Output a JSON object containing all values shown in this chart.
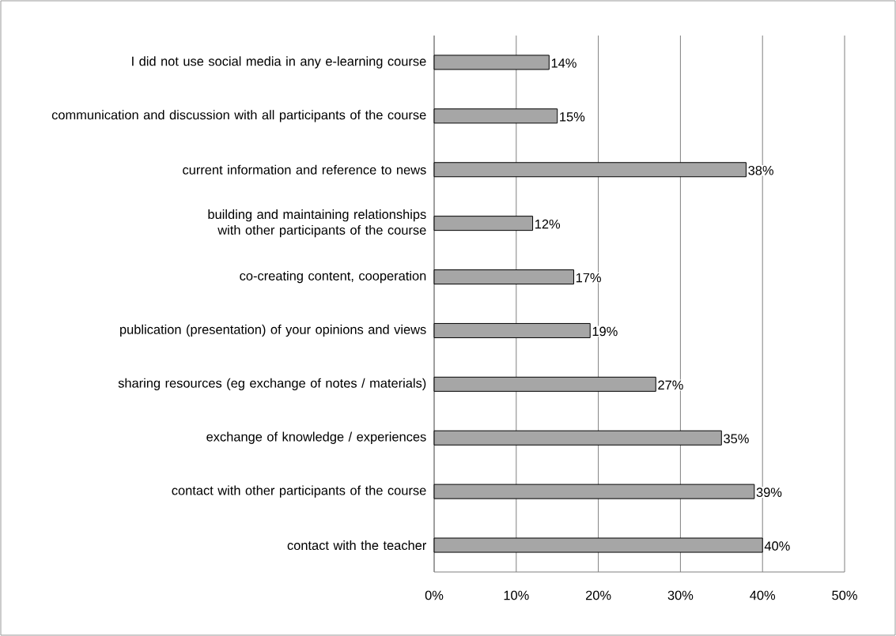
{
  "chart_data": {
    "type": "bar",
    "orientation": "horizontal",
    "categories": [
      "I did not use social media in any e-learning course",
      "communication and discussion with all participants of the course",
      "current information and reference to news",
      "building and maintaining relationships with other participants of the course",
      "co-creating content, cooperation",
      "publication (presentation) of your opinions and views",
      "sharing resources (eg exchange of notes / materials)",
      "exchange of knowledge / experiences",
      "contact with other participants of the course",
      "contact with the teacher"
    ],
    "values": [
      14,
      15,
      38,
      12,
      17,
      19,
      27,
      35,
      39,
      40
    ],
    "value_labels": [
      "14%",
      "15%",
      "38%",
      "12%",
      "17%",
      "19%",
      "27%",
      "35%",
      "39%",
      "40%"
    ],
    "color": "#a6a6a6",
    "xlim": [
      0,
      50
    ],
    "xticks": [
      {
        "value": 0,
        "label": "0%"
      },
      {
        "value": 10,
        "label": "10%"
      },
      {
        "value": 20,
        "label": "20%"
      },
      {
        "value": 30,
        "label": "30%"
      },
      {
        "value": 40,
        "label": "40%"
      },
      {
        "value": 50,
        "label": "50%"
      }
    ],
    "grid": "x"
  }
}
